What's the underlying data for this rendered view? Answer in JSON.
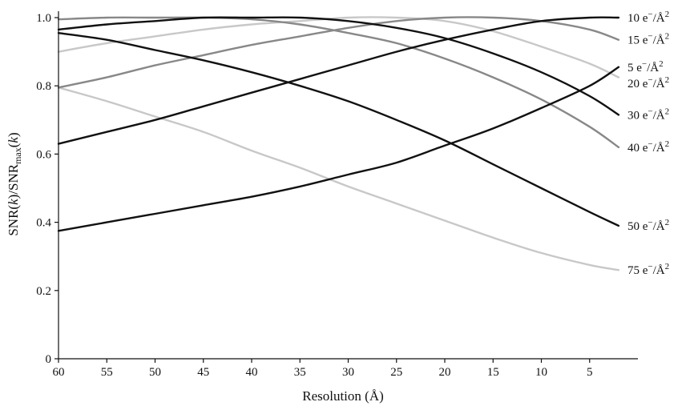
{
  "chart_data": {
    "type": "line",
    "xlabel": "Resolution (Å)",
    "ylabel": "SNR(k)/SNRmax(k)",
    "ylabel_parts": {
      "a": "SNR(",
      "k1": "k",
      "b": ")/SNR",
      "sub": "max",
      "c": "(",
      "k2": "k",
      "d": ")"
    },
    "xlim": [
      60,
      0
    ],
    "ylim": [
      0,
      1.0
    ],
    "x_reversed": true,
    "x_ticks": [
      60,
      55,
      50,
      45,
      40,
      35,
      30,
      25,
      20,
      15,
      10,
      5
    ],
    "x_tick_labels": [
      "60",
      "55",
      "50",
      "45",
      "40",
      "35",
      "30",
      "25",
      "20",
      "15",
      "10",
      "5"
    ],
    "y_ticks": [
      0,
      0.2,
      0.4,
      0.6,
      0.8,
      1.0
    ],
    "y_tick_labels": [
      "0",
      "0.2",
      "0.4",
      "0.6",
      "0.8",
      "1.0"
    ],
    "grid": false,
    "x": [
      60,
      55,
      50,
      45,
      40,
      35,
      30,
      25,
      20,
      15,
      10,
      5,
      2
    ],
    "series": [
      {
        "name": "5 e⁻/Å²",
        "label_main": "5 e",
        "color": "#111111",
        "values": [
          0.375,
          0.4,
          0.425,
          0.45,
          0.475,
          0.505,
          0.54,
          0.575,
          0.625,
          0.675,
          0.735,
          0.8,
          0.855
        ]
      },
      {
        "name": "10 e⁻/Å²",
        "label_main": "10 e",
        "color": "#111111",
        "values": [
          0.63,
          0.665,
          0.7,
          0.74,
          0.78,
          0.82,
          0.86,
          0.9,
          0.935,
          0.965,
          0.99,
          1.0,
          1.0
        ]
      },
      {
        "name": "15 e⁻/Å²",
        "label_main": "15 e",
        "color": "#888888",
        "values": [
          0.795,
          0.825,
          0.86,
          0.89,
          0.92,
          0.945,
          0.97,
          0.99,
          1.0,
          1.0,
          0.99,
          0.965,
          0.935
        ]
      },
      {
        "name": "20 e⁻/Å²",
        "label_main": "20 e",
        "color": "#c8c8c8",
        "values": [
          0.9,
          0.925,
          0.945,
          0.965,
          0.98,
          0.99,
          1.0,
          1.0,
          0.99,
          0.96,
          0.915,
          0.865,
          0.825
        ]
      },
      {
        "name": "30 e⁻/Å²",
        "label_main": "30 e",
        "color": "#111111",
        "values": [
          0.965,
          0.98,
          0.99,
          1.0,
          1.0,
          1.0,
          0.99,
          0.97,
          0.94,
          0.895,
          0.84,
          0.77,
          0.715
        ]
      },
      {
        "name": "40 e⁻/Å²",
        "label_main": "40 e",
        "color": "#888888",
        "values": [
          0.995,
          1.0,
          1.0,
          1.0,
          0.995,
          0.98,
          0.955,
          0.925,
          0.88,
          0.825,
          0.76,
          0.68,
          0.62
        ]
      },
      {
        "name": "50 e⁻/Å²",
        "label_main": "50 e",
        "color": "#111111",
        "values": [
          0.955,
          0.935,
          0.905,
          0.875,
          0.84,
          0.8,
          0.755,
          0.7,
          0.64,
          0.57,
          0.5,
          0.43,
          0.39
        ]
      },
      {
        "name": "75 e⁻/Å²",
        "label_main": "75 e",
        "color": "#c8c8c8",
        "values": [
          0.795,
          0.755,
          0.71,
          0.665,
          0.61,
          0.56,
          0.505,
          0.455,
          0.405,
          0.355,
          0.31,
          0.275,
          0.26
        ]
      }
    ],
    "label_unit": "Å",
    "label_superscript_minus": "−",
    "label_superscript_two": "2",
    "label_slash": "/",
    "legend": "right-end labels"
  }
}
